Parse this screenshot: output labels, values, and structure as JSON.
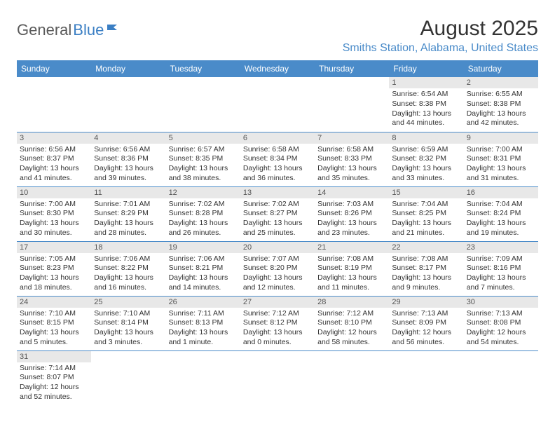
{
  "logo": {
    "text1": "General",
    "text2": "Blue"
  },
  "title": "August 2025",
  "location": "Smiths Station, Alabama, United States",
  "colors": {
    "header_bg": "#4a8bc9",
    "header_text": "#ffffff",
    "location_text": "#4a8bc9",
    "daynum_bg": "#e8e8e8",
    "border": "#4a8bc9"
  },
  "day_headers": [
    "Sunday",
    "Monday",
    "Tuesday",
    "Wednesday",
    "Thursday",
    "Friday",
    "Saturday"
  ],
  "weeks": [
    [
      {
        "n": "",
        "sr": "",
        "ss": "",
        "dl1": "",
        "dl2": ""
      },
      {
        "n": "",
        "sr": "",
        "ss": "",
        "dl1": "",
        "dl2": ""
      },
      {
        "n": "",
        "sr": "",
        "ss": "",
        "dl1": "",
        "dl2": ""
      },
      {
        "n": "",
        "sr": "",
        "ss": "",
        "dl1": "",
        "dl2": ""
      },
      {
        "n": "",
        "sr": "",
        "ss": "",
        "dl1": "",
        "dl2": ""
      },
      {
        "n": "1",
        "sr": "Sunrise: 6:54 AM",
        "ss": "Sunset: 8:38 PM",
        "dl1": "Daylight: 13 hours",
        "dl2": "and 44 minutes."
      },
      {
        "n": "2",
        "sr": "Sunrise: 6:55 AM",
        "ss": "Sunset: 8:38 PM",
        "dl1": "Daylight: 13 hours",
        "dl2": "and 42 minutes."
      }
    ],
    [
      {
        "n": "3",
        "sr": "Sunrise: 6:56 AM",
        "ss": "Sunset: 8:37 PM",
        "dl1": "Daylight: 13 hours",
        "dl2": "and 41 minutes."
      },
      {
        "n": "4",
        "sr": "Sunrise: 6:56 AM",
        "ss": "Sunset: 8:36 PM",
        "dl1": "Daylight: 13 hours",
        "dl2": "and 39 minutes."
      },
      {
        "n": "5",
        "sr": "Sunrise: 6:57 AM",
        "ss": "Sunset: 8:35 PM",
        "dl1": "Daylight: 13 hours",
        "dl2": "and 38 minutes."
      },
      {
        "n": "6",
        "sr": "Sunrise: 6:58 AM",
        "ss": "Sunset: 8:34 PM",
        "dl1": "Daylight: 13 hours",
        "dl2": "and 36 minutes."
      },
      {
        "n": "7",
        "sr": "Sunrise: 6:58 AM",
        "ss": "Sunset: 8:33 PM",
        "dl1": "Daylight: 13 hours",
        "dl2": "and 35 minutes."
      },
      {
        "n": "8",
        "sr": "Sunrise: 6:59 AM",
        "ss": "Sunset: 8:32 PM",
        "dl1": "Daylight: 13 hours",
        "dl2": "and 33 minutes."
      },
      {
        "n": "9",
        "sr": "Sunrise: 7:00 AM",
        "ss": "Sunset: 8:31 PM",
        "dl1": "Daylight: 13 hours",
        "dl2": "and 31 minutes."
      }
    ],
    [
      {
        "n": "10",
        "sr": "Sunrise: 7:00 AM",
        "ss": "Sunset: 8:30 PM",
        "dl1": "Daylight: 13 hours",
        "dl2": "and 30 minutes."
      },
      {
        "n": "11",
        "sr": "Sunrise: 7:01 AM",
        "ss": "Sunset: 8:29 PM",
        "dl1": "Daylight: 13 hours",
        "dl2": "and 28 minutes."
      },
      {
        "n": "12",
        "sr": "Sunrise: 7:02 AM",
        "ss": "Sunset: 8:28 PM",
        "dl1": "Daylight: 13 hours",
        "dl2": "and 26 minutes."
      },
      {
        "n": "13",
        "sr": "Sunrise: 7:02 AM",
        "ss": "Sunset: 8:27 PM",
        "dl1": "Daylight: 13 hours",
        "dl2": "and 25 minutes."
      },
      {
        "n": "14",
        "sr": "Sunrise: 7:03 AM",
        "ss": "Sunset: 8:26 PM",
        "dl1": "Daylight: 13 hours",
        "dl2": "and 23 minutes."
      },
      {
        "n": "15",
        "sr": "Sunrise: 7:04 AM",
        "ss": "Sunset: 8:25 PM",
        "dl1": "Daylight: 13 hours",
        "dl2": "and 21 minutes."
      },
      {
        "n": "16",
        "sr": "Sunrise: 7:04 AM",
        "ss": "Sunset: 8:24 PM",
        "dl1": "Daylight: 13 hours",
        "dl2": "and 19 minutes."
      }
    ],
    [
      {
        "n": "17",
        "sr": "Sunrise: 7:05 AM",
        "ss": "Sunset: 8:23 PM",
        "dl1": "Daylight: 13 hours",
        "dl2": "and 18 minutes."
      },
      {
        "n": "18",
        "sr": "Sunrise: 7:06 AM",
        "ss": "Sunset: 8:22 PM",
        "dl1": "Daylight: 13 hours",
        "dl2": "and 16 minutes."
      },
      {
        "n": "19",
        "sr": "Sunrise: 7:06 AM",
        "ss": "Sunset: 8:21 PM",
        "dl1": "Daylight: 13 hours",
        "dl2": "and 14 minutes."
      },
      {
        "n": "20",
        "sr": "Sunrise: 7:07 AM",
        "ss": "Sunset: 8:20 PM",
        "dl1": "Daylight: 13 hours",
        "dl2": "and 12 minutes."
      },
      {
        "n": "21",
        "sr": "Sunrise: 7:08 AM",
        "ss": "Sunset: 8:19 PM",
        "dl1": "Daylight: 13 hours",
        "dl2": "and 11 minutes."
      },
      {
        "n": "22",
        "sr": "Sunrise: 7:08 AM",
        "ss": "Sunset: 8:17 PM",
        "dl1": "Daylight: 13 hours",
        "dl2": "and 9 minutes."
      },
      {
        "n": "23",
        "sr": "Sunrise: 7:09 AM",
        "ss": "Sunset: 8:16 PM",
        "dl1": "Daylight: 13 hours",
        "dl2": "and 7 minutes."
      }
    ],
    [
      {
        "n": "24",
        "sr": "Sunrise: 7:10 AM",
        "ss": "Sunset: 8:15 PM",
        "dl1": "Daylight: 13 hours",
        "dl2": "and 5 minutes."
      },
      {
        "n": "25",
        "sr": "Sunrise: 7:10 AM",
        "ss": "Sunset: 8:14 PM",
        "dl1": "Daylight: 13 hours",
        "dl2": "and 3 minutes."
      },
      {
        "n": "26",
        "sr": "Sunrise: 7:11 AM",
        "ss": "Sunset: 8:13 PM",
        "dl1": "Daylight: 13 hours",
        "dl2": "and 1 minute."
      },
      {
        "n": "27",
        "sr": "Sunrise: 7:12 AM",
        "ss": "Sunset: 8:12 PM",
        "dl1": "Daylight: 13 hours",
        "dl2": "and 0 minutes."
      },
      {
        "n": "28",
        "sr": "Sunrise: 7:12 AM",
        "ss": "Sunset: 8:10 PM",
        "dl1": "Daylight: 12 hours",
        "dl2": "and 58 minutes."
      },
      {
        "n": "29",
        "sr": "Sunrise: 7:13 AM",
        "ss": "Sunset: 8:09 PM",
        "dl1": "Daylight: 12 hours",
        "dl2": "and 56 minutes."
      },
      {
        "n": "30",
        "sr": "Sunrise: 7:13 AM",
        "ss": "Sunset: 8:08 PM",
        "dl1": "Daylight: 12 hours",
        "dl2": "and 54 minutes."
      }
    ],
    [
      {
        "n": "31",
        "sr": "Sunrise: 7:14 AM",
        "ss": "Sunset: 8:07 PM",
        "dl1": "Daylight: 12 hours",
        "dl2": "and 52 minutes."
      },
      {
        "n": "",
        "sr": "",
        "ss": "",
        "dl1": "",
        "dl2": ""
      },
      {
        "n": "",
        "sr": "",
        "ss": "",
        "dl1": "",
        "dl2": ""
      },
      {
        "n": "",
        "sr": "",
        "ss": "",
        "dl1": "",
        "dl2": ""
      },
      {
        "n": "",
        "sr": "",
        "ss": "",
        "dl1": "",
        "dl2": ""
      },
      {
        "n": "",
        "sr": "",
        "ss": "",
        "dl1": "",
        "dl2": ""
      },
      {
        "n": "",
        "sr": "",
        "ss": "",
        "dl1": "",
        "dl2": ""
      }
    ]
  ]
}
